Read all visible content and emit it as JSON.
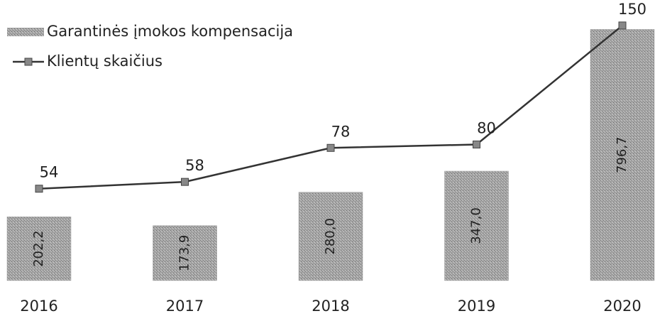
{
  "chart_data": {
    "type": "bar_line",
    "categories": [
      "2016",
      "2017",
      "2018",
      "2019",
      "2020"
    ],
    "series": [
      {
        "name": "Garantinės įmokos kompensacija",
        "type": "bar",
        "color": "#9a9a9a",
        "values": [
          202.2,
          173.9,
          280.0,
          347.0,
          796.7
        ],
        "value_labels": [
          "202,2",
          "173,9",
          "280,0",
          "347,0",
          "796,7"
        ]
      },
      {
        "name": "Klientų skaičius",
        "type": "line",
        "axis": "y2",
        "color": "#333333",
        "values": [
          54,
          58,
          78,
          80,
          150
        ]
      }
    ],
    "ylim": [
      0,
      890
    ],
    "y2lim": [
      0,
      165
    ],
    "legend": "top-left"
  }
}
